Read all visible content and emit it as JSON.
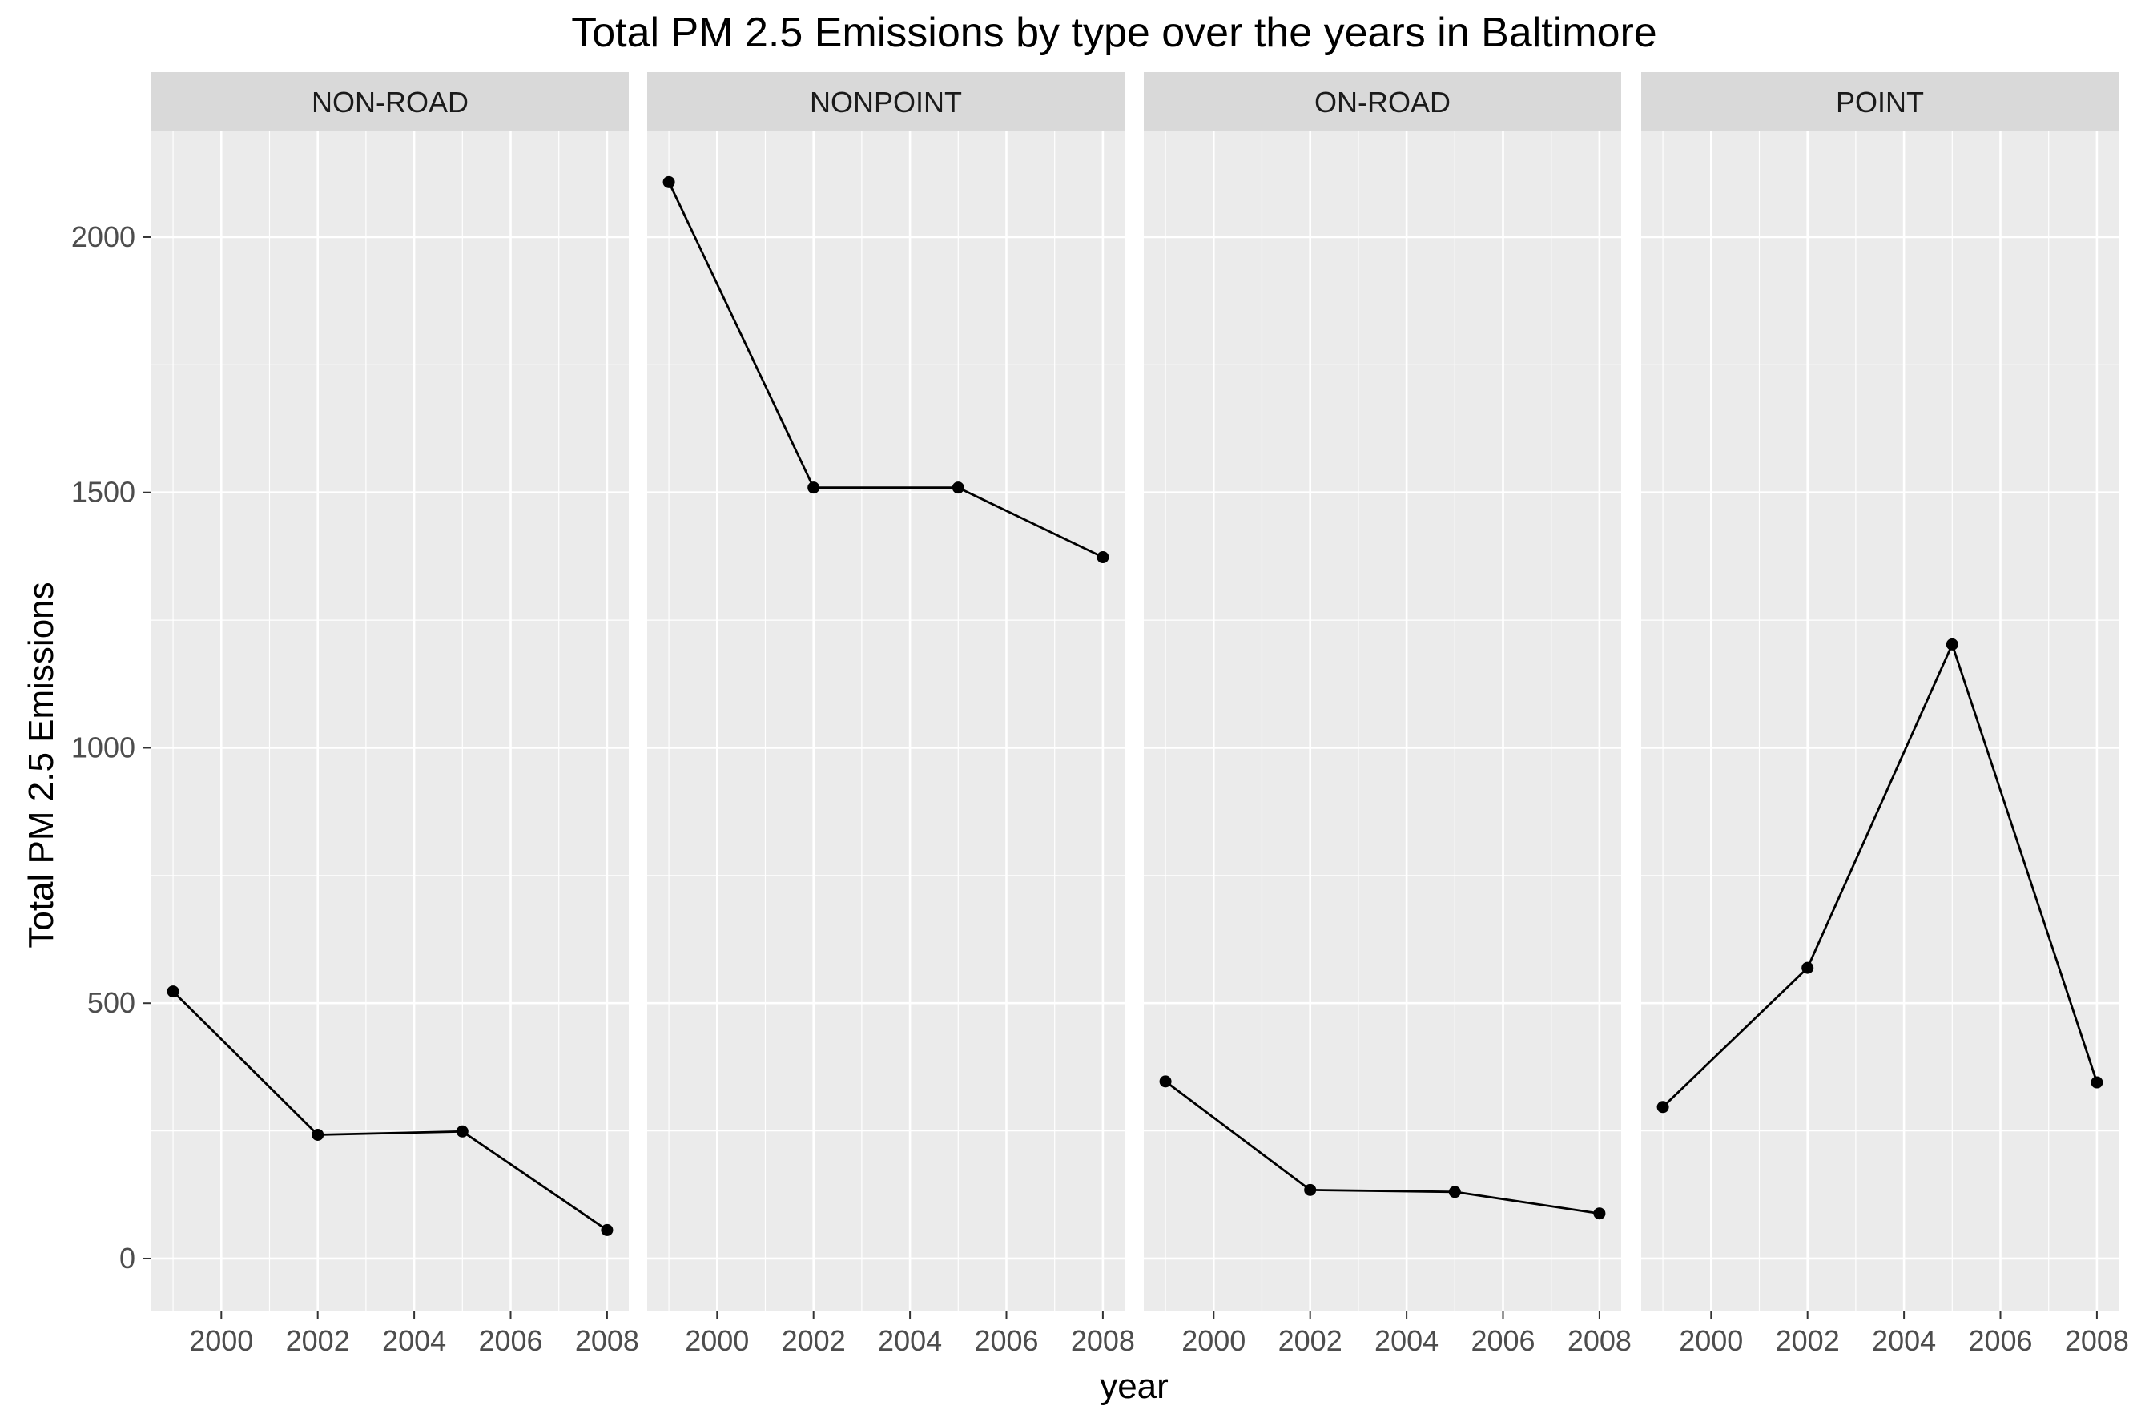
{
  "chart_data": {
    "type": "line",
    "title": "Total PM 2.5 Emissions by type over the years in Baltimore",
    "xlabel": "year",
    "ylabel": "Total PM 2.5 Emissions",
    "x": [
      1999,
      2002,
      2005,
      2008
    ],
    "x_ticks": [
      2000,
      2002,
      2004,
      2006,
      2008
    ],
    "y_ticks": [
      0,
      500,
      1000,
      1500,
      2000
    ],
    "xlim": [
      1998.55,
      2008.45
    ],
    "ylim": [
      -102,
      2207
    ],
    "grid": true,
    "facets": [
      {
        "name": "NON-ROAD",
        "values": [
          522.94,
          242.34,
          248.93,
          55.82
        ]
      },
      {
        "name": "NONPOINT",
        "values": [
          2107.63,
          1509.5,
          1509.5,
          1373.21
        ]
      },
      {
        "name": "ON-ROAD",
        "values": [
          346.82,
          134.31,
          130.43,
          88.28
        ]
      },
      {
        "name": "POINT",
        "values": [
          296.8,
          569.26,
          1202.49,
          344.98
        ]
      }
    ],
    "colors": {
      "panel_background": "#ebebeb",
      "strip_background": "#d9d9d9",
      "grid_line": "#ffffff",
      "series_line": "#000000"
    }
  }
}
